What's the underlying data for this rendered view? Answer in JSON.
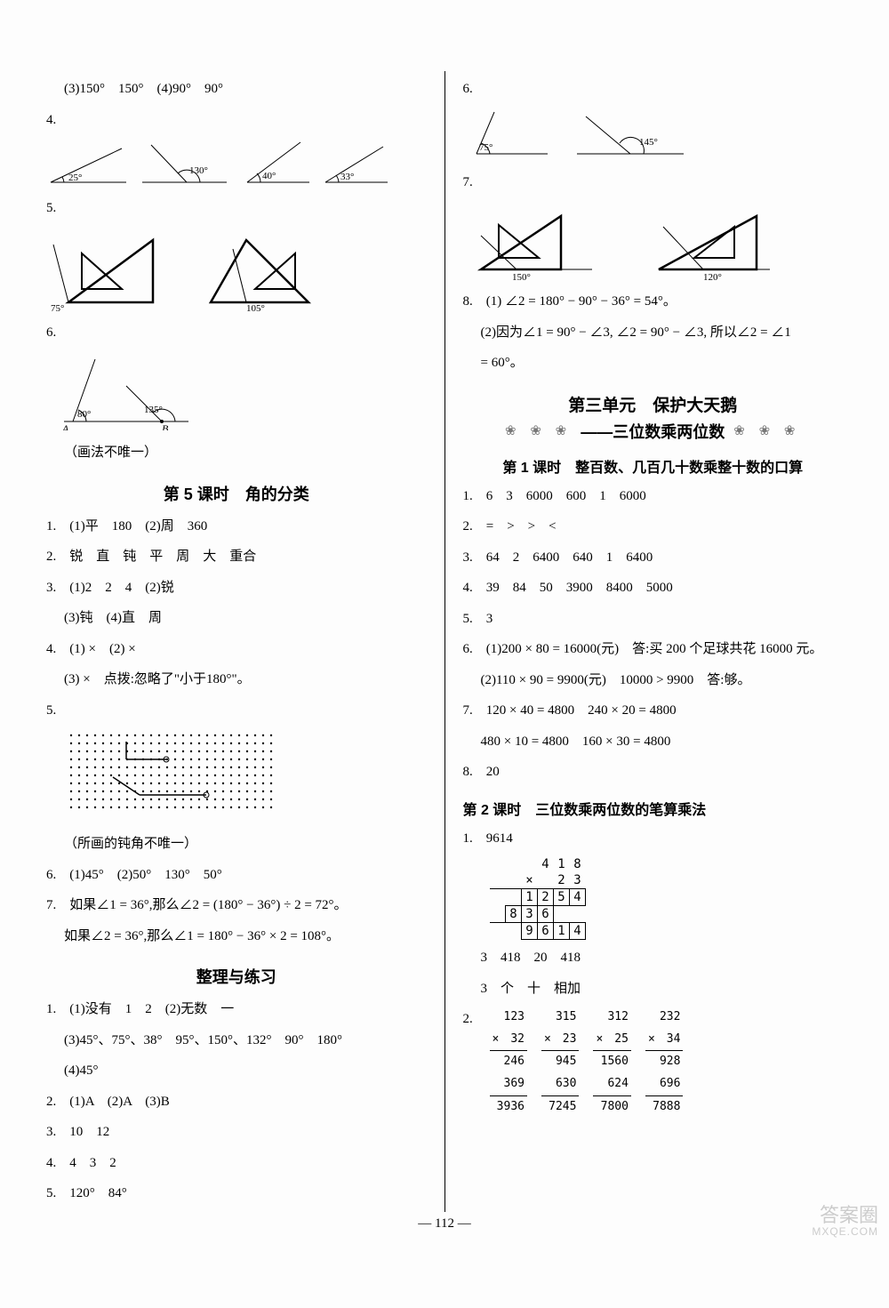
{
  "left": {
    "q3": "(3)150°　150°　(4)90°　90°",
    "q4num": "4.",
    "angles4": [
      "25°",
      "130°",
      "40°",
      "33°"
    ],
    "q5num": "5.",
    "angles5": [
      "75°",
      "105°"
    ],
    "q6num": "6.",
    "angles6": {
      "a": "80°",
      "b": "135°",
      "labA": "A",
      "labB": "B"
    },
    "q6note": "（画法不唯一）",
    "lesson5_title": "第 5 课时　角的分类",
    "l5_1": "1.　(1)平　180　(2)周　360",
    "l5_2": "2.　锐　直　钝　平　周　大　重合",
    "l5_3a": "3.　(1)2　2　4　(2)锐",
    "l5_3b": "(3)钝　(4)直　周",
    "l5_4a": "4.　(1) ×　(2) ×",
    "l5_4b": "(3) ×　点拨:忽略了\"小于180°\"。",
    "l5_5num": "5.",
    "l5_5note": "（所画的钝角不唯一）",
    "l5_6": "6.　(1)45°　(2)50°　130°　50°",
    "l5_7a": "7.　如果∠1 = 36°,那么∠2 = (180° − 36°) ÷ 2 = 72°。",
    "l5_7b": "如果∠2 = 36°,那么∠1 = 180° − 36° × 2 = 108°。",
    "review_title": "整理与练习",
    "r1a": "1.　(1)没有　1　2　(2)无数　一",
    "r1b": "(3)45°、75°、38°　95°、150°、132°　90°　180°",
    "r1c": "(4)45°",
    "r2": "2.　(1)A　(2)A　(3)B",
    "r3": "3.　10　12",
    "r4": "4.　4　3　2",
    "r5": "5.　120°　84°"
  },
  "right": {
    "q6num": "6.",
    "angles6": [
      "75°",
      "145°"
    ],
    "q7num": "7.",
    "angles7": [
      "150°",
      "120°"
    ],
    "q8a": "8.　(1) ∠2 = 180° − 90° − 36° = 54°。",
    "q8b": "(2)因为∠1 = 90° − ∠3, ∠2 = 90° − ∠3, 所以∠2 = ∠1",
    "q8c": "= 60°。",
    "unit_title": "第三单元　保护大天鹅",
    "unit_sub": "——三位数乘两位数",
    "deco_l": "❀ ❀ ❀",
    "deco_r": "❀ ❀ ❀",
    "lesson1_title": "第 1 课时　整百数、几百几十数乘整十数的口算",
    "l1_1": "1.　6　3　6000　600　1　6000",
    "l1_2": "2.　=　>　>　<",
    "l1_3": "3.　64　2　6400　640　1　6400",
    "l1_4": "4.　39　84　50　3900　8400　5000",
    "l1_5": "5.　3",
    "l1_6a": "6.　(1)200 × 80 = 16000(元)　答:买 200 个足球共花 16000 元。",
    "l1_6b": "(2)110 × 90 = 9900(元)　10000 > 9900　答:够。",
    "l1_7a": "7.　120 × 40 = 4800　240 × 20 = 4800",
    "l1_7b": "480 × 10 = 4800　160 × 30 = 4800",
    "l1_8": "8.　20",
    "lesson2_title": "第 2 课时　三位数乘两位数的笔算乘法",
    "l2_1": "1.　9614",
    "calc": {
      "top": [
        "",
        "4",
        "1",
        "8"
      ],
      "mul": [
        "×",
        "",
        "2",
        "3"
      ],
      "r1": [
        "1",
        "2",
        "5",
        "4"
      ],
      "r2": [
        "8",
        "3",
        "6",
        ""
      ],
      "r3": [
        "9",
        "6",
        "1",
        "4"
      ]
    },
    "l2_mid": "3　418　20　418",
    "l2_mid2": "3　个　十　相加",
    "l2_2num": "2.",
    "mults": [
      {
        "a": "123",
        "b": "32",
        "p1": "246",
        "p2": "369",
        "r": "3936"
      },
      {
        "a": "315",
        "b": "23",
        "p1": "945",
        "p2": "630",
        "r": "7245"
      },
      {
        "a": "312",
        "b": "25",
        "p1": "1560",
        "p2": "624",
        "r": "7800"
      },
      {
        "a": "232",
        "b": "34",
        "p1": "928",
        "p2": "696",
        "r": "7888"
      }
    ]
  },
  "pagenum": "— 112 —",
  "watermark": {
    "big": "答案圈",
    "small": "MXQE.COM"
  }
}
